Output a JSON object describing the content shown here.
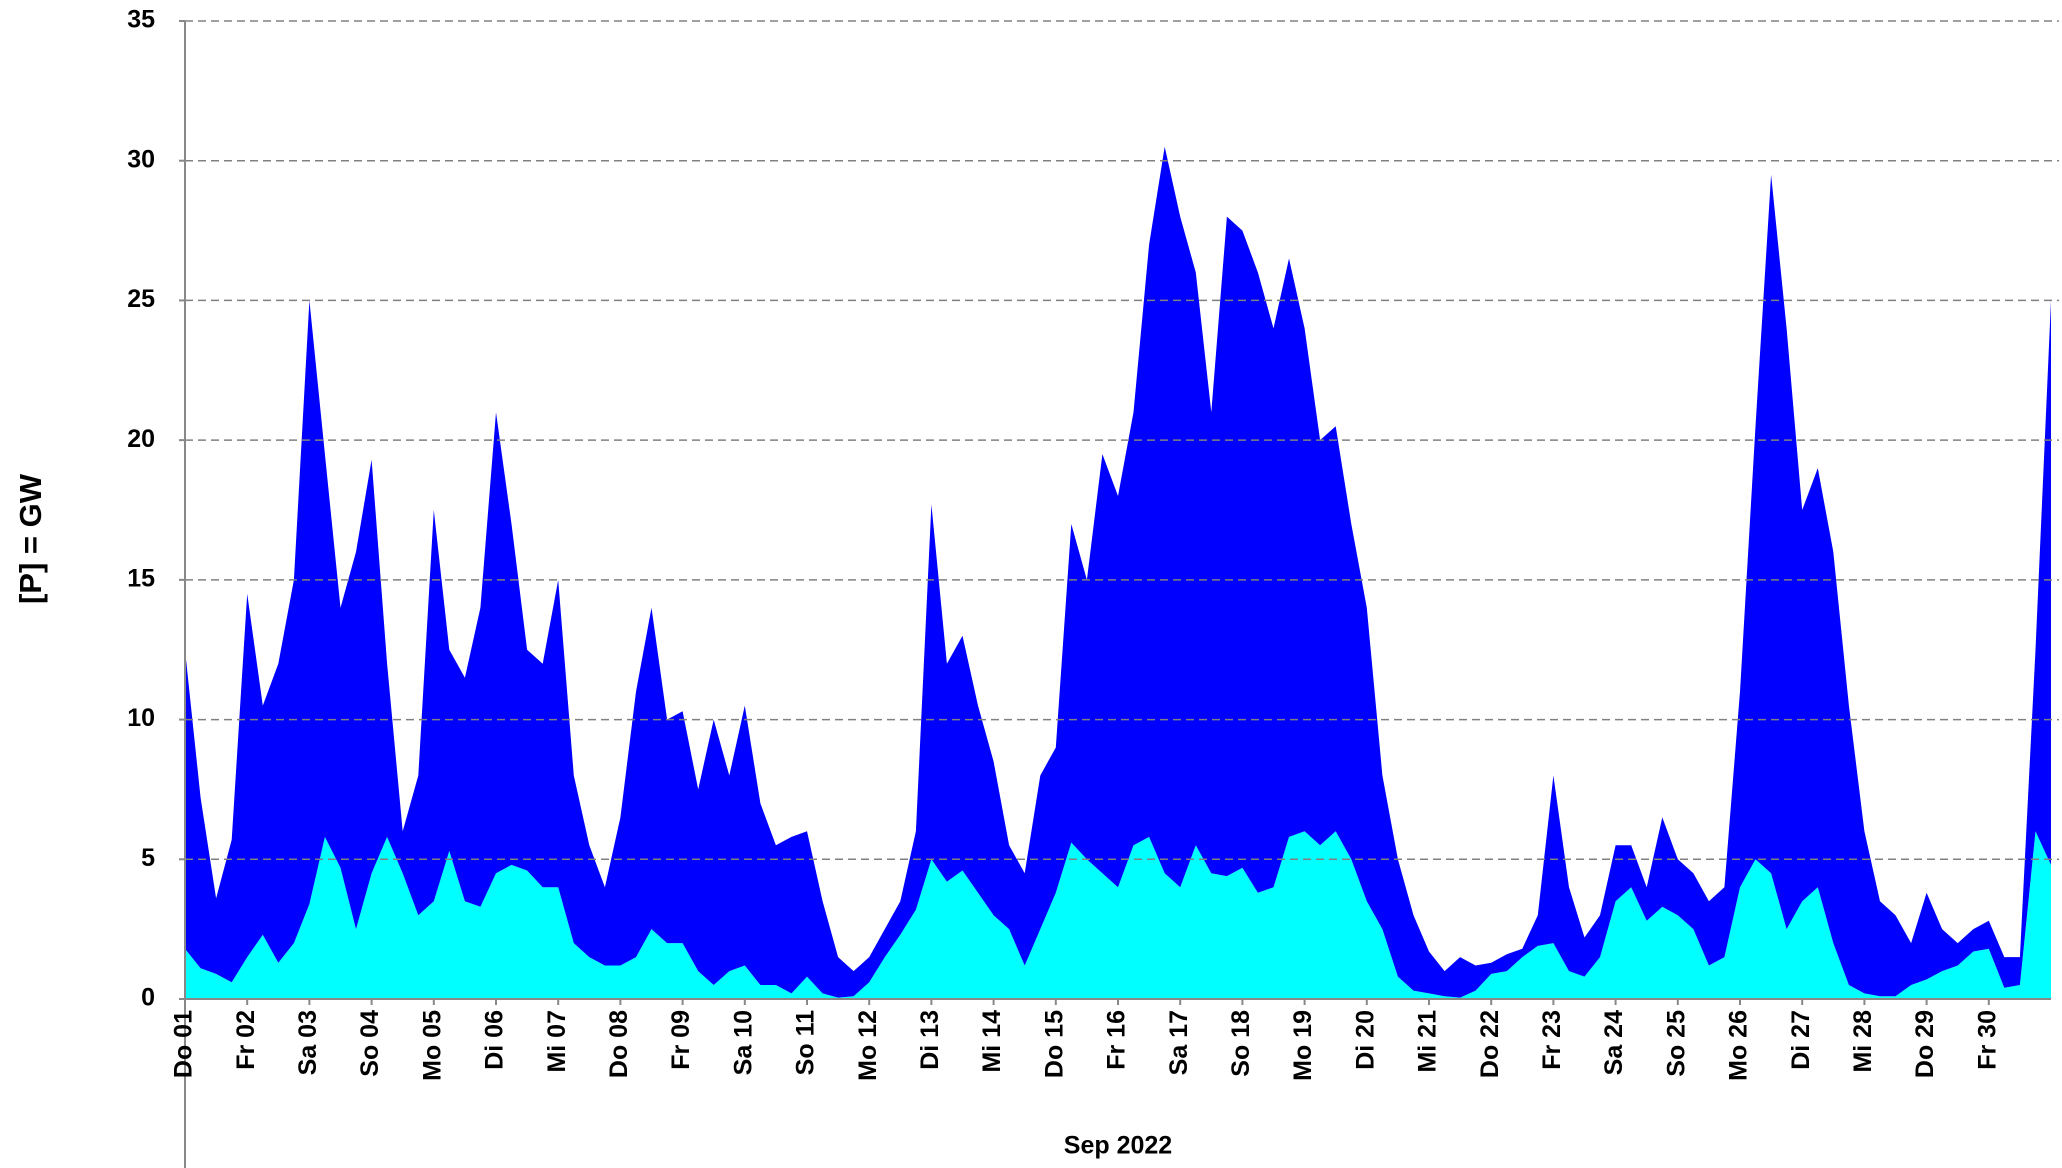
{
  "chart_data": {
    "type": "stacked_area",
    "y_label": "[P]  =  GW",
    "x_label": "Sep 2022",
    "xlim": [
      0,
      30
    ],
    "xticks": [
      {
        "value": 0,
        "label": "Do 01"
      },
      {
        "value": 1,
        "label": "Fr 02"
      },
      {
        "value": 2,
        "label": "Sa 03"
      },
      {
        "value": 3,
        "label": "So 04"
      },
      {
        "value": 4,
        "label": "Mo 05"
      },
      {
        "value": 5,
        "label": "Di 06"
      },
      {
        "value": 6,
        "label": "Mi 07"
      },
      {
        "value": 7,
        "label": "Do 08"
      },
      {
        "value": 8,
        "label": "Fr 09"
      },
      {
        "value": 9,
        "label": "Sa 10"
      },
      {
        "value": 10,
        "label": "So 11"
      },
      {
        "value": 11,
        "label": "Mo 12"
      },
      {
        "value": 12,
        "label": "Di 13"
      },
      {
        "value": 13,
        "label": "Mi 14"
      },
      {
        "value": 14,
        "label": "Do 15"
      },
      {
        "value": 15,
        "label": "Fr 16"
      },
      {
        "value": 16,
        "label": "Sa 17"
      },
      {
        "value": 17,
        "label": "So 18"
      },
      {
        "value": 18,
        "label": "Mo 19"
      },
      {
        "value": 19,
        "label": "Di 20"
      },
      {
        "value": 20,
        "label": "Mi 21"
      },
      {
        "value": 21,
        "label": "Do 22"
      },
      {
        "value": 22,
        "label": "Fr 23"
      },
      {
        "value": 23,
        "label": "Sa 24"
      },
      {
        "value": 24,
        "label": "So 25"
      },
      {
        "value": 25,
        "label": "Mo 26"
      },
      {
        "value": 26,
        "label": "Di 27"
      },
      {
        "value": 27,
        "label": "Mi 28"
      },
      {
        "value": 28,
        "label": "Do 29"
      },
      {
        "value": 29,
        "label": "Fr 30"
      }
    ],
    "ylim": [
      0,
      35
    ],
    "yticks": [
      0,
      5,
      10,
      15,
      20,
      25,
      30,
      35
    ],
    "grid": true,
    "x": [
      0,
      0.25,
      0.5,
      0.75,
      1,
      1.25,
      1.5,
      1.75,
      2,
      2.25,
      2.5,
      2.75,
      3,
      3.25,
      3.5,
      3.75,
      4,
      4.25,
      4.5,
      4.75,
      5,
      5.25,
      5.5,
      5.75,
      6,
      6.25,
      6.5,
      6.75,
      7,
      7.25,
      7.5,
      7.75,
      8,
      8.25,
      8.5,
      8.75,
      9,
      9.25,
      9.5,
      9.75,
      10,
      10.25,
      10.5,
      10.75,
      11,
      11.25,
      11.5,
      11.75,
      12,
      12.25,
      12.5,
      12.75,
      13,
      13.25,
      13.5,
      13.75,
      14,
      14.25,
      14.5,
      14.75,
      15,
      15.25,
      15.5,
      15.75,
      16,
      16.25,
      16.5,
      16.75,
      17,
      17.25,
      17.5,
      17.75,
      18,
      18.25,
      18.5,
      18.75,
      19,
      19.25,
      19.5,
      19.75,
      20,
      20.25,
      20.5,
      20.75,
      21,
      21.25,
      21.5,
      21.75,
      22,
      22.25,
      22.5,
      22.75,
      23,
      23.25,
      23.5,
      23.75,
      24,
      24.25,
      24.5,
      24.75,
      25,
      25.25,
      25.5,
      25.75,
      26,
      26.25,
      26.5,
      26.75,
      27,
      27.25,
      27.5,
      27.75,
      28,
      28.25,
      28.5,
      28.75,
      29,
      29.25,
      29.5,
      29.75,
      30
    ],
    "series": [
      {
        "color": "#00ffff",
        "values": [
          1.8,
          1.1,
          0.9,
          0.6,
          1.5,
          2.3,
          1.3,
          2,
          3.4,
          5.8,
          4.7,
          2.5,
          4.5,
          5.8,
          4.5,
          3,
          3.5,
          5.3,
          3.5,
          3.3,
          4.5,
          4.8,
          4.6,
          4,
          4,
          2,
          1.5,
          1.2,
          1.2,
          1.5,
          2.5,
          2,
          2,
          1,
          0.5,
          1,
          1.2,
          0.5,
          0.5,
          0.2,
          0.8,
          0.2,
          0.05,
          0.1,
          0.6,
          1.5,
          2.3,
          3.2,
          5,
          4.2,
          4.6,
          3.8,
          3,
          2.5,
          1.2,
          2.5,
          3.8,
          5.6,
          5,
          4.5,
          4,
          5.5,
          5.8,
          4.5,
          4,
          5.5,
          4.5,
          4.4,
          4.7,
          3.8,
          4,
          5.8,
          6,
          5.5,
          6,
          5,
          3.5,
          2.5,
          0.8,
          0.3,
          0.2,
          0.1,
          0.05,
          0.3,
          0.9,
          1,
          1.5,
          1.9,
          2,
          1,
          0.8,
          1.5,
          3.5,
          4,
          2.8,
          3.3,
          3,
          2.5,
          1.2,
          1.5,
          4,
          5,
          4.5,
          2.5,
          3.5,
          4,
          2,
          0.5,
          0.2,
          0.1,
          0.1,
          0.5,
          0.7,
          1,
          1.2,
          1.7,
          1.8,
          0.4,
          0.5,
          6,
          4.8
        ]
      },
      {
        "color": "#0000ff",
        "values": [
          10.7,
          6.1,
          2.7,
          5.1,
          13,
          8.2,
          10.7,
          13,
          21.6,
          13.7,
          9.3,
          13.5,
          14.8,
          6.2,
          1.5,
          5,
          14,
          7.2,
          8,
          10.7,
          16.5,
          12.2,
          7.9,
          8,
          11,
          6,
          4,
          2.8,
          5.3,
          9.5,
          11.5,
          8,
          8.3,
          6.5,
          9.5,
          7,
          9.3,
          6.5,
          5,
          5.6,
          5.2,
          3.3,
          1.45,
          0.9,
          0.9,
          1,
          1.2,
          2.8,
          12.7,
          7.8,
          8.4,
          6.7,
          5.5,
          3,
          3.3,
          5.5,
          5.2,
          11.4,
          10,
          15,
          14,
          15.5,
          21.2,
          26,
          24,
          20.5,
          16.5,
          23.6,
          22.8,
          22.2,
          20,
          20.7,
          18,
          14.5,
          14.5,
          12,
          10.5,
          5.5,
          4.2,
          2.7,
          1.5,
          0.9,
          1.45,
          0.9,
          0.4,
          0.6,
          0.3,
          1.1,
          6,
          3,
          1.4,
          1.5,
          2,
          1.5,
          1.2,
          3.2,
          2,
          2,
          2.3,
          2.5,
          7,
          15.5,
          25,
          21.5,
          14,
          15,
          14,
          10,
          5.8,
          3.4,
          2.9,
          1.5,
          3.1,
          1.5,
          0.8,
          0.8,
          1,
          1.1,
          1,
          6.5,
          20.2
        ]
      }
    ]
  }
}
